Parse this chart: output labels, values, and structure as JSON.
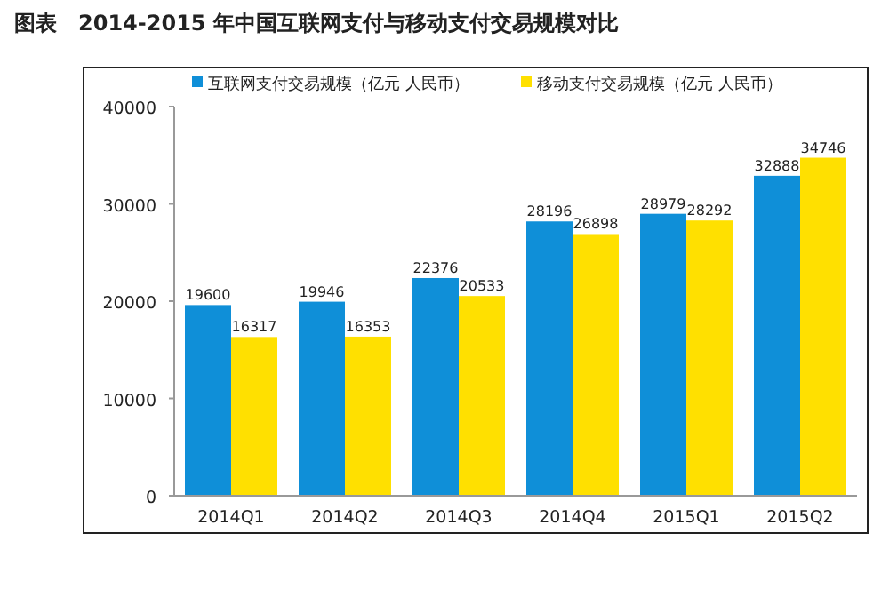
{
  "chart_data": {
    "type": "bar",
    "title": "图表　2014-2015 年中国互联网支付与移动支付交易规模对比",
    "categories": [
      "2014Q1",
      "2014Q2",
      "2014Q3",
      "2014Q4",
      "2015Q1",
      "2015Q2"
    ],
    "series": [
      {
        "name": "互联网支付交易规模（亿元 人民币）",
        "color": "#0f8fd8",
        "values": [
          19600,
          19946,
          22376,
          28196,
          28979,
          32888
        ]
      },
      {
        "name": "移动支付交易规模（亿元 人民币）",
        "color": "#ffe000",
        "values": [
          16317,
          16353,
          20533,
          26898,
          28292,
          34746
        ]
      }
    ],
    "ylim": [
      0,
      40000
    ],
    "yticks": [
      0,
      10000,
      20000,
      30000,
      40000
    ],
    "data_labels": true,
    "legend": "top",
    "grid": false
  }
}
